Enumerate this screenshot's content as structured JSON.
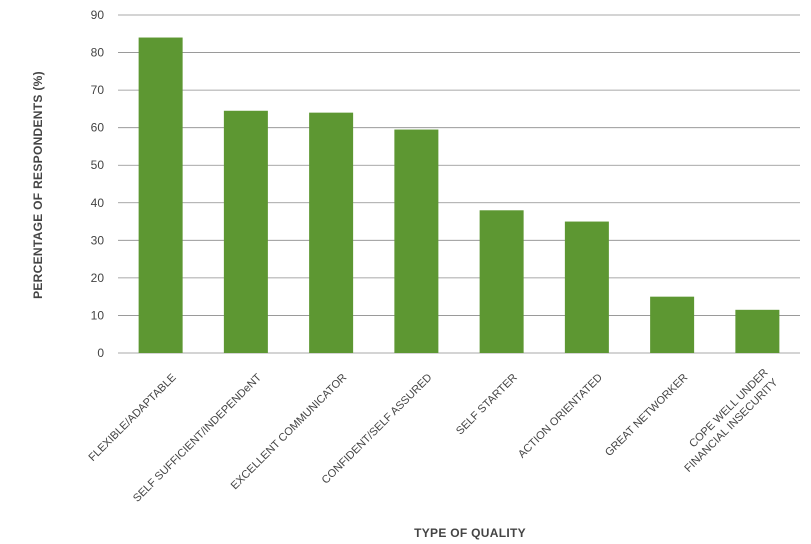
{
  "chart_data": {
    "type": "bar",
    "title": "",
    "xlabel": "TYPE OF QUALITY",
    "ylabel": "PERCENTAGE OF RESPONDENTS (%)",
    "ylim": [
      0,
      90
    ],
    "yticks": [
      0,
      10,
      20,
      30,
      40,
      50,
      60,
      70,
      80,
      90
    ],
    "grid": true,
    "legend": "none",
    "bar_color": "#5d9732",
    "categories": [
      [
        "FLEXIBLE/ADAPTABLE"
      ],
      [
        "SELF SUFFICIENT/INDEPENDeNT"
      ],
      [
        "EXCELLENT COMMUNICATOR"
      ],
      [
        "CONFIDENT/SELF ASSURED"
      ],
      [
        "SELF STARTER"
      ],
      [
        "ACTION ORIENTATED"
      ],
      [
        "GREAT NETWORKER"
      ],
      [
        "COPE WELL UNDER",
        "FINANCIAL INSECURITY"
      ]
    ],
    "values": [
      84,
      64.5,
      64,
      59.5,
      38,
      35,
      15,
      11.5
    ]
  }
}
